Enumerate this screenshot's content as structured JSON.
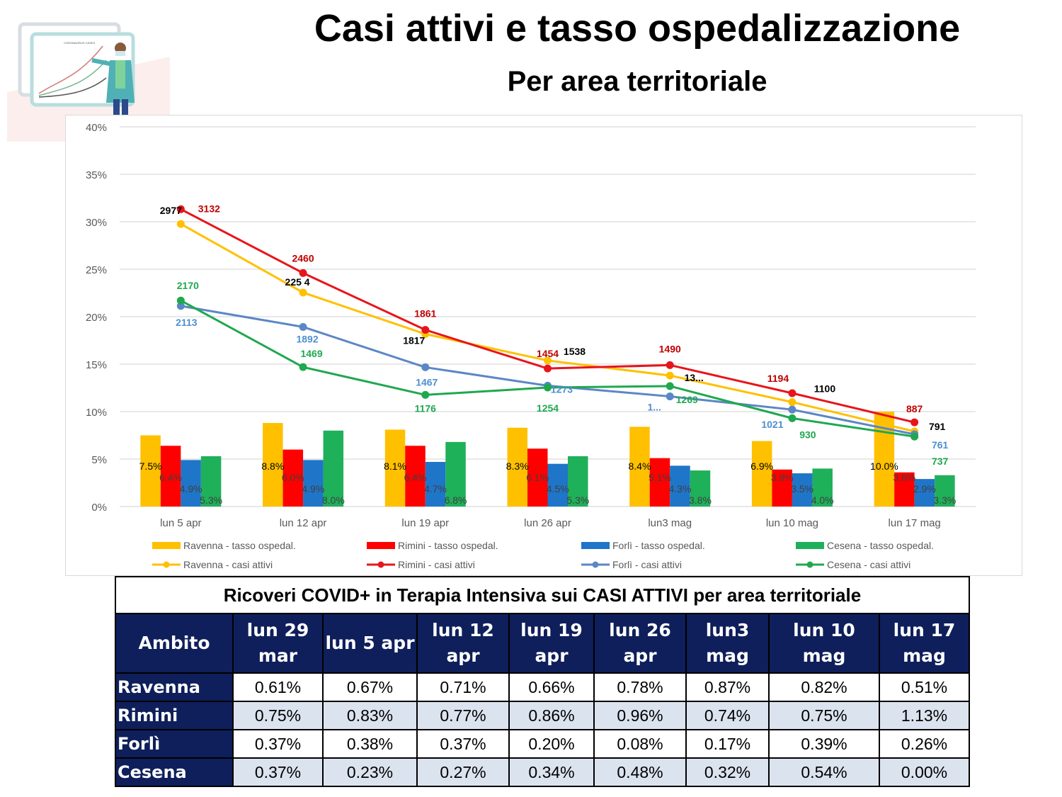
{
  "header": {
    "title": "Casi attivi e tasso ospedalizzazione",
    "subtitle": "Per area territoriale"
  },
  "illustration": {
    "board_text": "CORONAVIRUS CASES"
  },
  "colors": {
    "Ravenna": "#ffc000",
    "Rimini": "#ff0000",
    "Forlì": "#1f75c8",
    "Cesena": "#1fb05a",
    "Ravenna_line": "#ffc000",
    "Rimini_line": "#e8141b",
    "Forlì_line": "#5b87c5",
    "Cesena_line": "#1fa84f",
    "Ravenna_label": "#000000",
    "Rimini_label": "#c00000",
    "Forlì_label": "#4f8fcf",
    "Cesena_label": "#1fa84f"
  },
  "chart_data": {
    "type": "bar+line",
    "categories": [
      "lun 5 apr",
      "lun 12 apr",
      "lun 19 apr",
      "lun 26 apr",
      "lun3 mag",
      "lun 10 mag",
      "lun 17 mag"
    ],
    "y_axis": {
      "ticks": [
        "0%",
        "5%",
        "10%",
        "15%",
        "20%",
        "25%",
        "30%",
        "35%",
        "40%"
      ],
      "range": [
        0,
        40
      ],
      "unit": "%"
    },
    "secondary_axis_range": [
      0,
      4000
    ],
    "bar_series": [
      {
        "name": "Ravenna - tasso ospedal.",
        "area": "Ravenna",
        "values": [
          7.5,
          8.8,
          8.1,
          8.3,
          8.4,
          6.9,
          10.0
        ],
        "labels": [
          "7.5%",
          "8.8%",
          "8.1%",
          "8.3%",
          "8.4%",
          "6.9%",
          "10.0%"
        ]
      },
      {
        "name": "Rimini - tasso ospedal.",
        "area": "Rimini",
        "values": [
          6.4,
          6.0,
          6.4,
          6.1,
          5.1,
          3.9,
          3.6
        ],
        "labels": [
          "6.4%",
          "6.0%",
          "6.4%",
          "6.1%",
          "5.1%",
          "3.9%",
          "3.6%"
        ]
      },
      {
        "name": "Forlì - tasso ospedal.",
        "area": "Forlì",
        "values": [
          4.9,
          4.9,
          4.7,
          4.5,
          4.3,
          3.5,
          2.9
        ],
        "labels": [
          "4.9%",
          "4.9%",
          "4.7%",
          "4.5%",
          "4.3%",
          "3.5%",
          "2.9%"
        ]
      },
      {
        "name": "Cesena - tasso ospedal.",
        "area": "Cesena",
        "values": [
          5.3,
          8.0,
          6.8,
          5.3,
          3.8,
          4.0,
          3.3
        ],
        "labels": [
          "5.3%",
          "8.0%",
          "6.8%",
          "5.3%",
          "3.8%",
          "4.0%",
          "3.3%"
        ]
      }
    ],
    "line_series": [
      {
        "name": "Ravenna - casi attivi",
        "area": "Ravenna",
        "values": [
          2977,
          2254,
          1817,
          1538,
          1380,
          1100,
          791
        ],
        "labels": [
          "2977",
          "225\n4",
          "1817",
          "1538",
          "13...",
          "1100",
          "791"
        ]
      },
      {
        "name": "Rimini - casi attivi",
        "area": "Rimini",
        "values": [
          3132,
          2460,
          1861,
          1454,
          1490,
          1194,
          887
        ],
        "labels": [
          "3132",
          "2460",
          "1861",
          "1454",
          "1490",
          "1194",
          "887"
        ]
      },
      {
        "name": "Forlì - casi attivi",
        "area": "Forlì",
        "values": [
          2113,
          1892,
          1467,
          1273,
          1160,
          1021,
          761
        ],
        "labels": [
          "2113",
          "1892",
          "1467",
          "1273",
          "1...",
          "1021",
          "761"
        ]
      },
      {
        "name": "Cesena - casi attivi",
        "area": "Cesena",
        "values": [
          2170,
          1469,
          1176,
          1254,
          1269,
          930,
          737
        ],
        "labels": [
          "2170",
          "1469",
          "1176",
          "1254",
          "1269",
          "930",
          "737"
        ]
      }
    ],
    "legend": "bottom",
    "grid": true
  },
  "table": {
    "caption": "Ricoveri COVID+ in Terapia Intensiva sui CASI ATTIVI per area territoriale",
    "headers": [
      "Ambito",
      "lun 29 mar",
      "lun 5 apr",
      "lun 12 apr",
      "lun 19 apr",
      "lun 26 apr",
      "lun3 mag",
      "lun 10 mag",
      "lun 17 mag"
    ],
    "rows": [
      [
        "Ravenna",
        "0.61%",
        "0.67%",
        "0.71%",
        "0.66%",
        "0.78%",
        "0.87%",
        "0.82%",
        "0.51%"
      ],
      [
        "Rimini",
        "0.75%",
        "0.83%",
        "0.77%",
        "0.86%",
        "0.96%",
        "0.74%",
        "0.75%",
        "1.13%"
      ],
      [
        "Forlì",
        "0.37%",
        "0.38%",
        "0.37%",
        "0.20%",
        "0.08%",
        "0.17%",
        "0.39%",
        "0.26%"
      ],
      [
        "Cesena",
        "0.37%",
        "0.23%",
        "0.27%",
        "0.34%",
        "0.48%",
        "0.32%",
        "0.54%",
        "0.00%"
      ]
    ]
  }
}
